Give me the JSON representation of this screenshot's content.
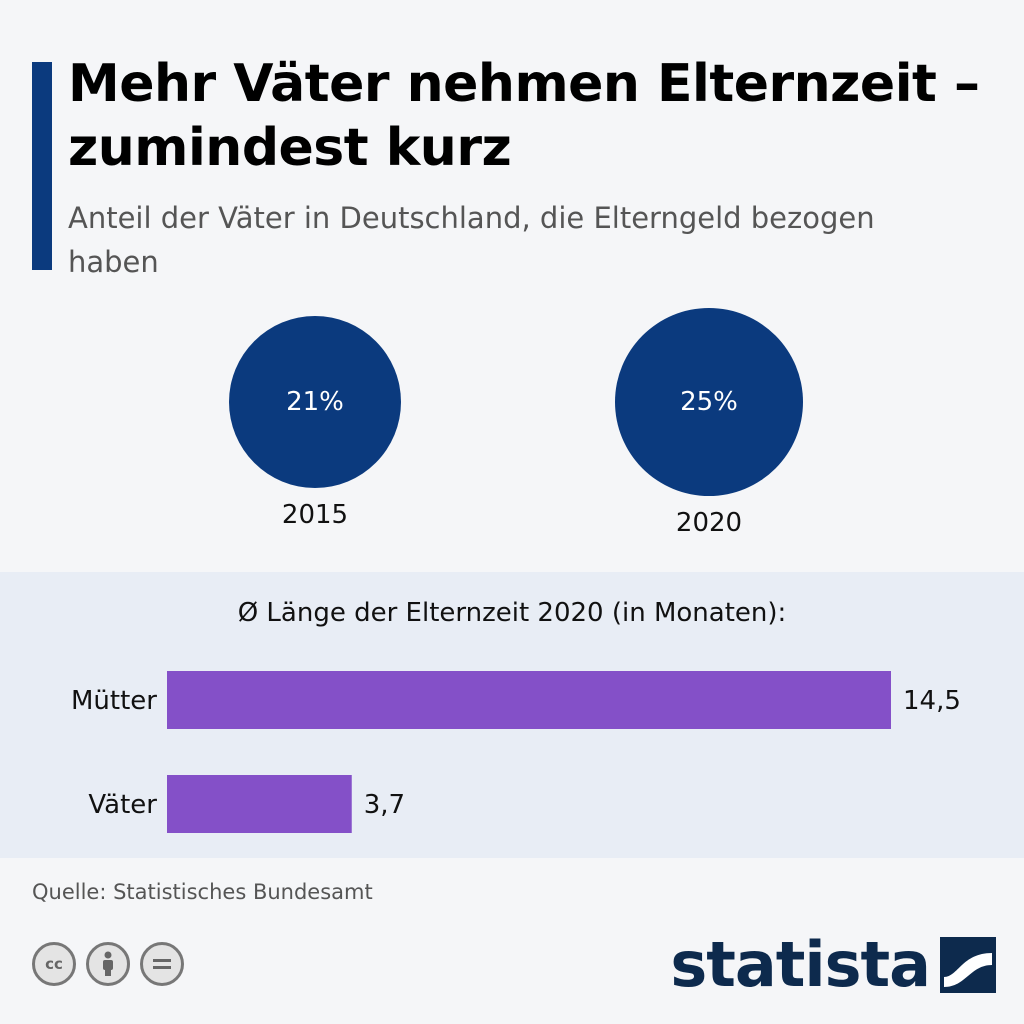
{
  "header": {
    "title": "Mehr Väter nehmen Elternzeit – zumindest kurz",
    "subtitle": "Anteil der Väter in Deutschland, die Elterngeld bezogen haben"
  },
  "circles": [
    {
      "year": "2015",
      "value_label": "21%"
    },
    {
      "year": "2020",
      "value_label": "25%"
    }
  ],
  "chart_data": [
    {
      "type": "bubble",
      "title": "Anteil der Väter in Deutschland, die Elterngeld bezogen haben",
      "categories": [
        "2015",
        "2020"
      ],
      "values": [
        21,
        25
      ],
      "unit": "%",
      "color": "#0b3a7e"
    },
    {
      "type": "bar",
      "orientation": "horizontal",
      "title": "Ø Länge der Elternzeit 2020 (in Monaten):",
      "categories": [
        "Mütter",
        "Väter"
      ],
      "values": [
        14.5,
        3.7
      ],
      "value_labels": [
        "14,5",
        "3,7"
      ],
      "xlim": [
        0,
        14.5
      ],
      "grid": false,
      "color": "#8450c8"
    }
  ],
  "footer": {
    "source": "Quelle: Statistisches Bundesamt",
    "brand": "statista",
    "license_icons": [
      "cc-icon",
      "attribution-icon",
      "no-derivatives-icon"
    ]
  },
  "colors": {
    "accent": "#0b3a7e",
    "bar": "#8450c8",
    "panel": "#e8edf5",
    "brand": "#0d2a4d"
  }
}
